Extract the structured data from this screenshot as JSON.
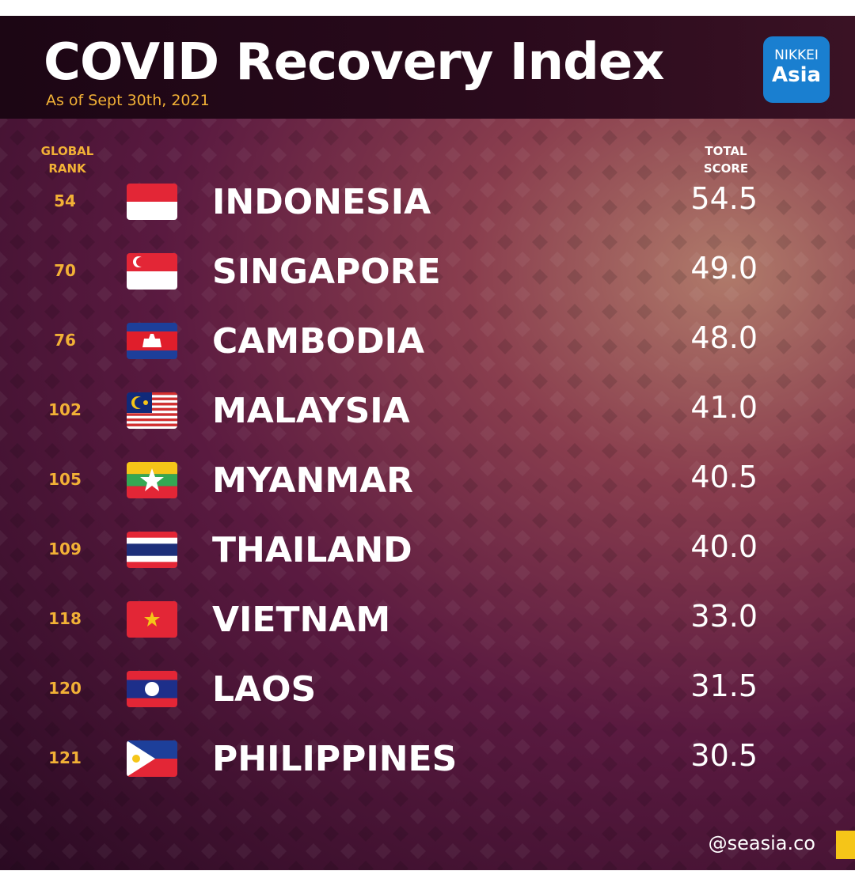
{
  "header": {
    "title": "COVID Recovery Index",
    "subtitle": "As of Sept 30th, 2021",
    "logo": [
      "NIKKEI",
      "Asia"
    ]
  },
  "table": {
    "columns": [
      "GLOBAL RANK",
      "TOTAL SCORE"
    ],
    "rows": [
      [
        "54",
        "INDONESIA",
        "54.5"
      ],
      [
        "70",
        "SINGAPORE",
        "49.0"
      ],
      [
        "76",
        "CAMBODIA",
        "48.0"
      ],
      [
        "102",
        "MALAYSIA",
        "41.0"
      ],
      [
        "105",
        "MYANMAR",
        "40.5"
      ],
      [
        "109",
        "THAILAND",
        "40.0"
      ],
      [
        "118",
        "VIETNAM",
        "33.0"
      ],
      [
        "120",
        "LAOS",
        "31.5"
      ],
      [
        "121",
        "PHILIPPINES",
        "30.5"
      ]
    ]
  },
  "footer": {
    "handle": "@seasia.co"
  }
}
